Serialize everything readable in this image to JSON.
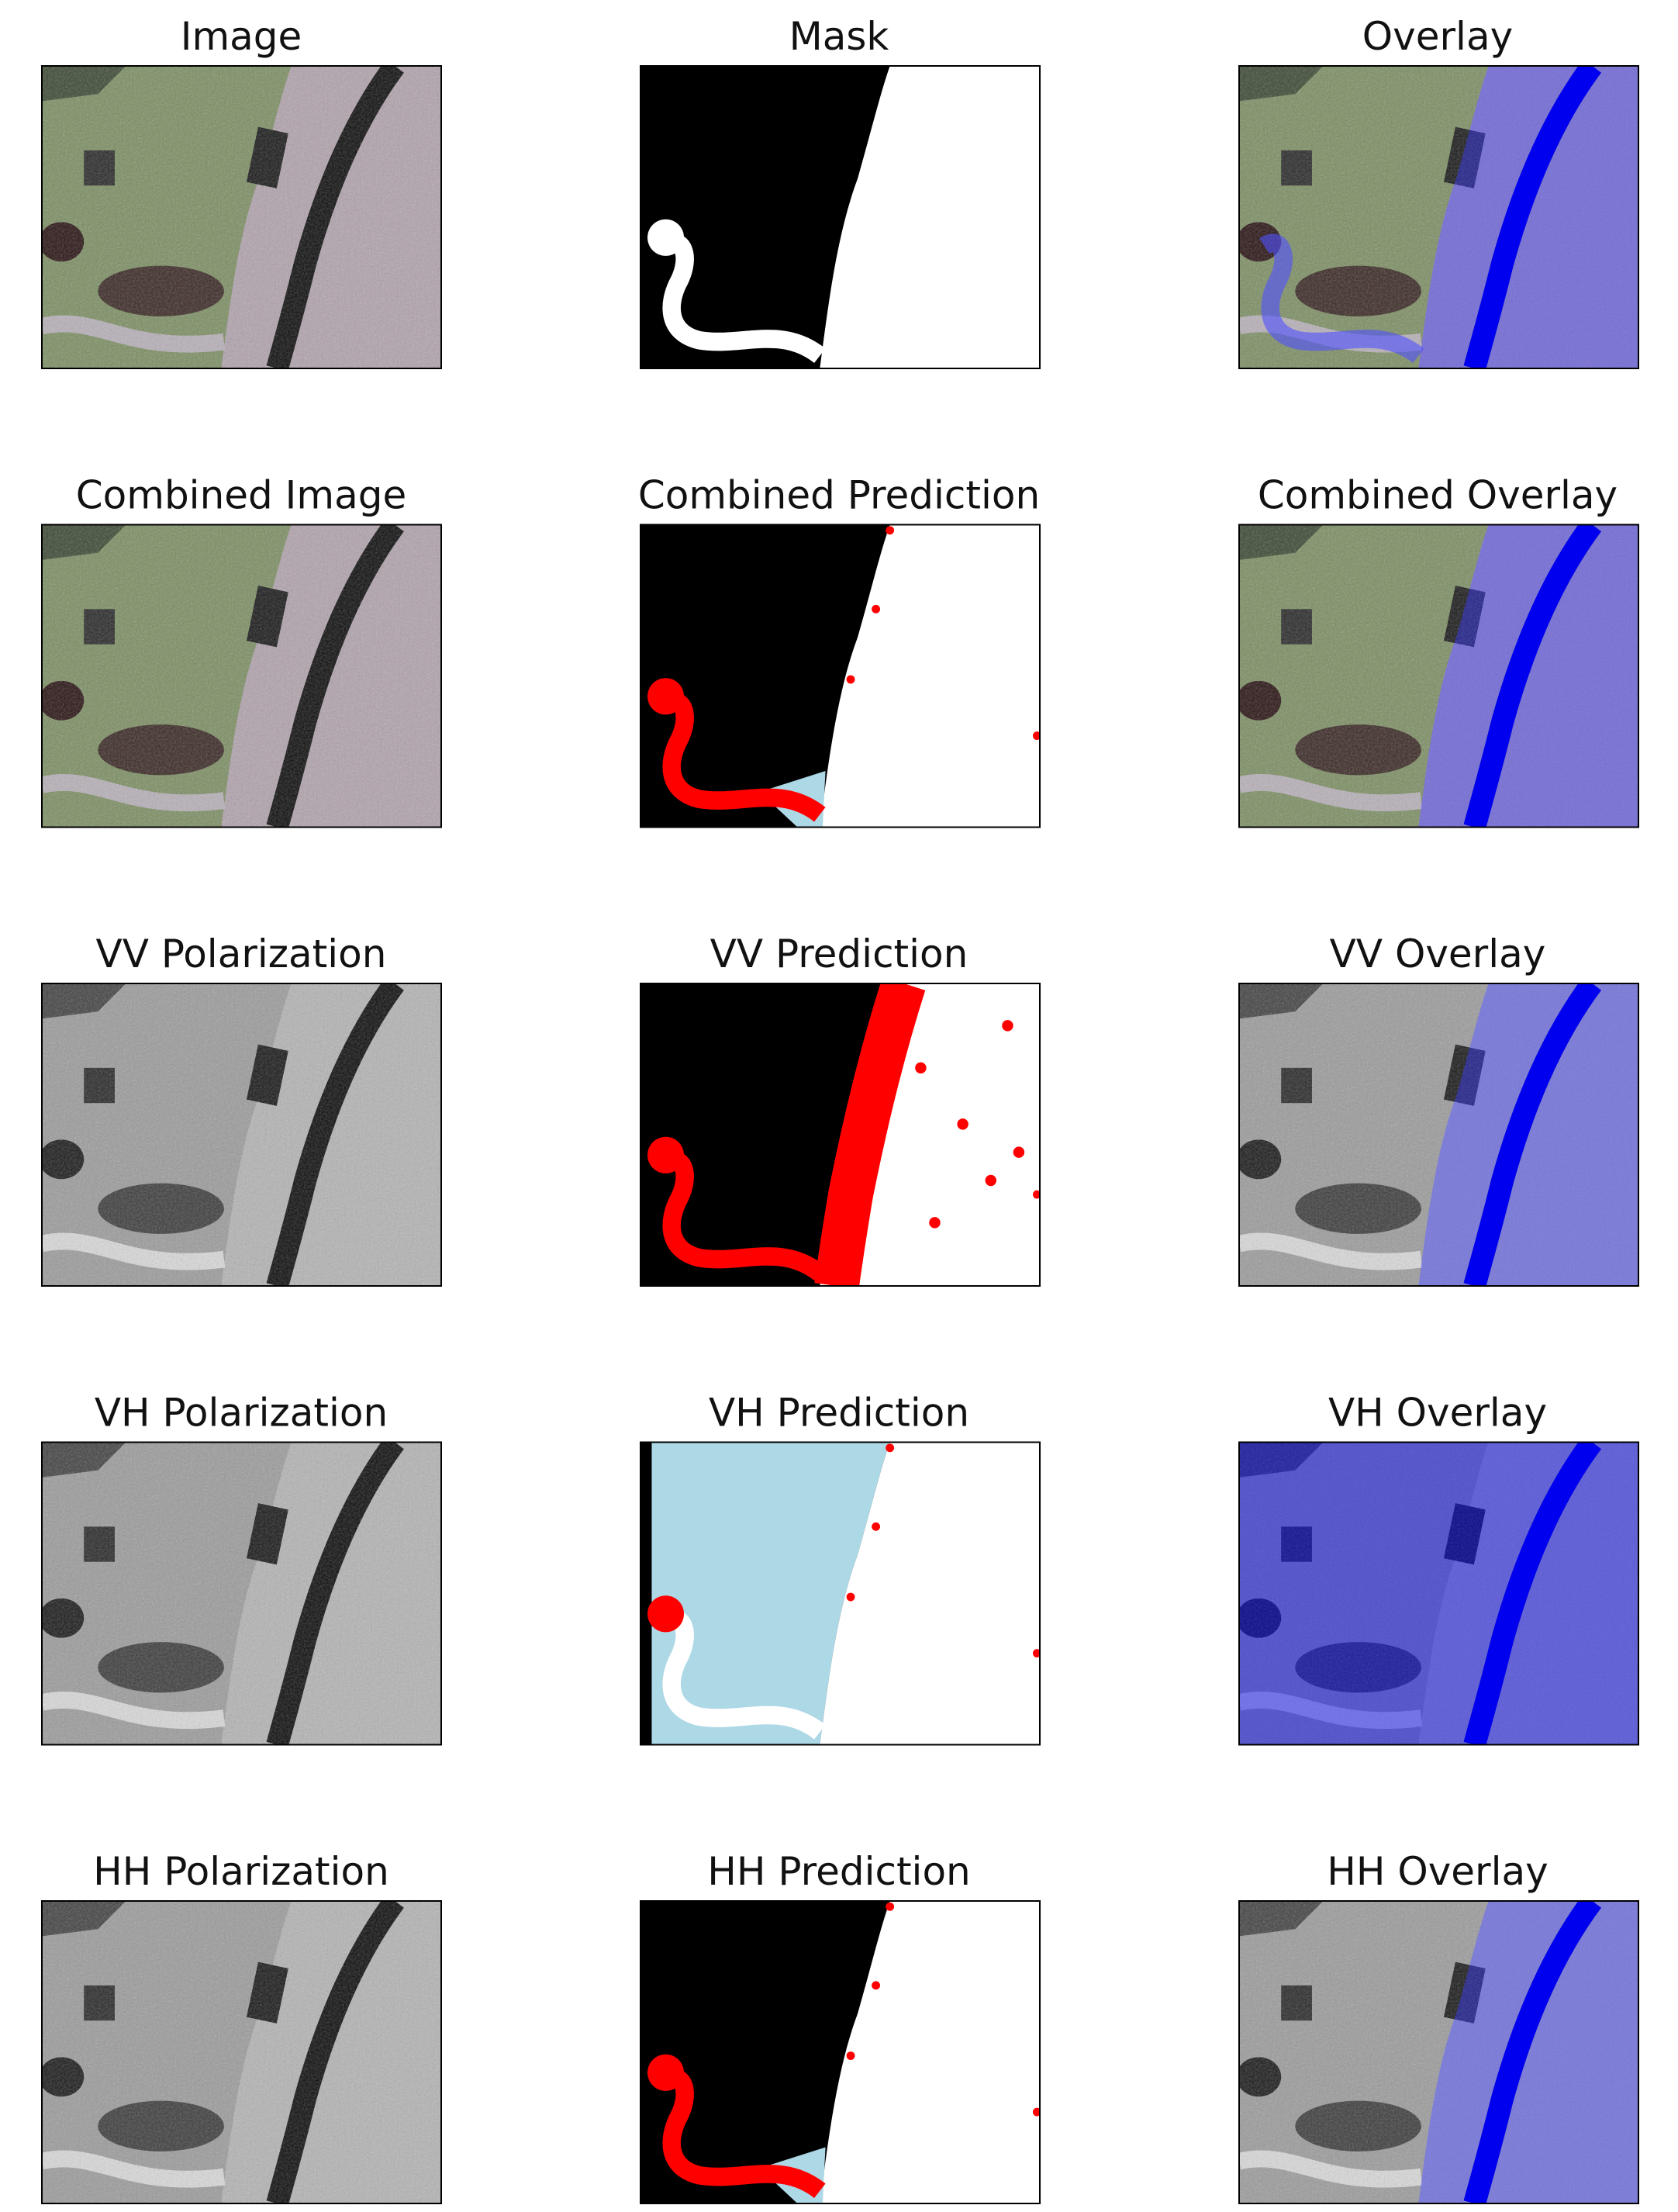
{
  "rows": [
    [
      "Image",
      "Mask",
      "Overlay"
    ],
    [
      "Combined Image",
      "Combined Prediction",
      "Combined Overlay"
    ],
    [
      "VV Polarization",
      "VV Prediction",
      "VV Overlay"
    ],
    [
      "VH Polarization",
      "VH Prediction",
      "VH Overlay"
    ],
    [
      "HH Polarization",
      "HH Prediction",
      "HH Overlay"
    ]
  ]
}
